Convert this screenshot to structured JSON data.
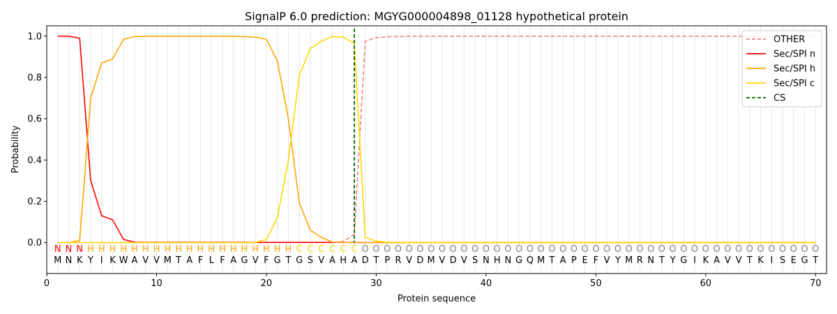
{
  "chart_data": {
    "type": "line",
    "title": "SignalP 6.0 prediction: MGYG000004898_01128 hypothetical protein",
    "xlabel": "Protein sequence",
    "ylabel": "Probability",
    "xlim": [
      0,
      71
    ],
    "ylim": [
      -0.15,
      1.05
    ],
    "xticks": [
      0,
      10,
      20,
      30,
      40,
      50,
      60,
      70
    ],
    "yticks": [
      0.0,
      0.2,
      0.4,
      0.6,
      0.8,
      1.0
    ],
    "x_tick_labels": [
      "0",
      "10",
      "20",
      "30",
      "40",
      "50",
      "60",
      "70"
    ],
    "y_tick_labels": [
      "0.0",
      "0.2",
      "0.4",
      "0.6",
      "0.8",
      "1.0"
    ],
    "legend_position": "top-right",
    "grid": "vertical lines at each residue",
    "sequence": [
      "M",
      "N",
      "K",
      "Y",
      "I",
      "K",
      "W",
      "A",
      "V",
      "V",
      "M",
      "T",
      "A",
      "F",
      "L",
      "F",
      "A",
      "G",
      "V",
      "F",
      "G",
      "T",
      "G",
      "S",
      "V",
      "A",
      "H",
      "A",
      "D",
      "T",
      "P",
      "R",
      "V",
      "D",
      "M",
      "V",
      "D",
      "V",
      "S",
      "N",
      "H",
      "N",
      "G",
      "Q",
      "M",
      "T",
      "A",
      "P",
      "E",
      "F",
      "V",
      "Y",
      "M",
      "R",
      "N",
      "T",
      "Y",
      "G",
      "I",
      "K",
      "A",
      "V",
      "V",
      "T",
      "K",
      "I",
      "S",
      "E",
      "G",
      "T"
    ],
    "region_labels": [
      "N",
      "N",
      "N",
      "H",
      "H",
      "H",
      "H",
      "H",
      "H",
      "H",
      "H",
      "H",
      "H",
      "H",
      "H",
      "H",
      "H",
      "H",
      "H",
      "H",
      "H",
      "H",
      "C",
      "C",
      "C",
      "C",
      "C",
      "C",
      "O",
      "O",
      "O",
      "O",
      "O",
      "O",
      "O",
      "O",
      "O",
      "O",
      "O",
      "O",
      "O",
      "O",
      "O",
      "O",
      "O",
      "O",
      "O",
      "O",
      "O",
      "O",
      "O",
      "O",
      "O",
      "O",
      "O",
      "O",
      "O",
      "O",
      "O",
      "O",
      "O",
      "O",
      "O",
      "O",
      "O",
      "O",
      "O",
      "O",
      "O",
      "O"
    ],
    "region_colors": {
      "N": "#ff0000",
      "H": "#ffa500",
      "C": "#ffd700",
      "O": "#808080"
    },
    "series": [
      {
        "name": "OTHER",
        "color": "#f08080",
        "dash": "dashed",
        "values": [
          0,
          0,
          0,
          0,
          0,
          0,
          0,
          0,
          0,
          0,
          0,
          0,
          0,
          0,
          0,
          0,
          0,
          0,
          0,
          0,
          0,
          0,
          0,
          0,
          0,
          0,
          0.005,
          0.04,
          0.975,
          0.993,
          0.997,
          0.998,
          0.999,
          0.999,
          0.999,
          0.999,
          0.999,
          0.999,
          0.999,
          0.999,
          0.999,
          0.999,
          0.999,
          0.999,
          0.999,
          0.999,
          0.999,
          0.999,
          0.999,
          0.999,
          0.999,
          0.999,
          0.999,
          0.999,
          0.999,
          0.999,
          0.999,
          0.999,
          0.999,
          0.999,
          0.999,
          0.999,
          0.999,
          0.999,
          0.999,
          0.999,
          0.999,
          0.999,
          0.999,
          0.999
        ]
      },
      {
        "name": "Sec/SPI n",
        "color": "#ff0000",
        "dash": "solid",
        "values": [
          1.0,
          1.0,
          0.99,
          0.3,
          0.13,
          0.11,
          0.015,
          0.002,
          0.001,
          0.001,
          0.001,
          0.001,
          0.001,
          0.001,
          0.001,
          0.001,
          0.001,
          0.001,
          0.001,
          0.001,
          0.001,
          0.001,
          0.001,
          0.001,
          0.001,
          0.001,
          0.001,
          0.001,
          0,
          0,
          0,
          0,
          0,
          0,
          0,
          0,
          0,
          0,
          0,
          0,
          0,
          0,
          0,
          0,
          0,
          0,
          0,
          0,
          0,
          0,
          0,
          0,
          0,
          0,
          0,
          0,
          0,
          0,
          0,
          0,
          0,
          0,
          0,
          0,
          0,
          0,
          0,
          0,
          0,
          0
        ]
      },
      {
        "name": "Sec/SPI h",
        "color": "#ffa500",
        "dash": "solid",
        "values": [
          0,
          0,
          0.01,
          0.7,
          0.87,
          0.89,
          0.985,
          0.998,
          0.999,
          0.999,
          0.999,
          0.999,
          0.999,
          0.999,
          0.999,
          0.999,
          0.999,
          0.998,
          0.995,
          0.985,
          0.88,
          0.6,
          0.19,
          0.06,
          0.025,
          0.003,
          0.001,
          0.001,
          0,
          0,
          0,
          0,
          0,
          0,
          0,
          0,
          0,
          0,
          0,
          0,
          0,
          0,
          0,
          0,
          0,
          0,
          0,
          0,
          0,
          0,
          0,
          0,
          0,
          0,
          0,
          0,
          0,
          0,
          0,
          0,
          0,
          0,
          0,
          0,
          0,
          0,
          0,
          0,
          0,
          0
        ]
      },
      {
        "name": "Sec/SPI c",
        "color": "#ffd700",
        "dash": "solid",
        "values": [
          0,
          0,
          0,
          0,
          0,
          0,
          0,
          0,
          0,
          0,
          0,
          0,
          0,
          0,
          0,
          0,
          0,
          0,
          0.001,
          0.015,
          0.12,
          0.4,
          0.81,
          0.94,
          0.975,
          0.998,
          0.995,
          0.965,
          0.025,
          0.007,
          0.002,
          0.001,
          0,
          0,
          0,
          0,
          0,
          0,
          0,
          0,
          0,
          0,
          0,
          0,
          0,
          0,
          0,
          0,
          0,
          0,
          0,
          0,
          0,
          0,
          0,
          0,
          0,
          0,
          0,
          0,
          0,
          0,
          0,
          0,
          0,
          0,
          0,
          0,
          0,
          0
        ]
      }
    ],
    "cleavage_site": {
      "name": "CS",
      "x": 28,
      "color": "#006400",
      "dash": "dashed"
    }
  }
}
